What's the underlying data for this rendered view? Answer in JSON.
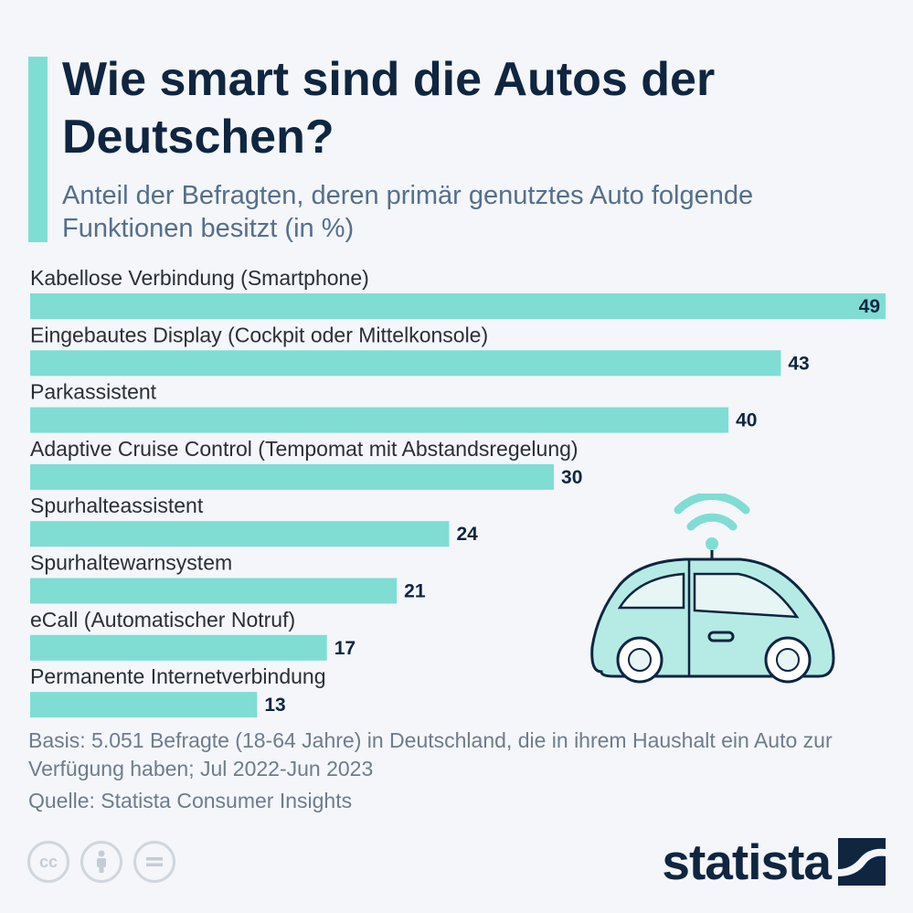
{
  "title": "Wie smart sind die Autos der Deutschen?",
  "subtitle": "Anteil der Befragten, deren primär genutztes Auto folgende Funktionen besitzt (in %)",
  "basis": "Basis: 5.051 Befragte (18-64 Jahre) in Deutschland, die in ihrem Haushalt ein Auto zur Verfügung haben; Jul 2022-Jun 2023",
  "source": "Quelle: Statista Consumer Insights",
  "brand": "statista",
  "license_icons": [
    "cc-icon",
    "by-icon",
    "nd-icon"
  ],
  "colors": {
    "bar": "#7fddd4",
    "title": "#0f2540",
    "background": "#f4f6f9"
  },
  "chart_data": {
    "type": "bar",
    "orientation": "horizontal",
    "categories": [
      "Kabellose Verbindung (Smartphone)",
      "Eingebautes Display (Cockpit oder Mittelkonsole)",
      "Parkassistent",
      "Adaptive Cruise Control (Tempomat mit Abstandsregelung)",
      "Spurhalteassistent",
      "Spurhaltewarnsystem",
      "eCall (Automatischer Notruf)",
      "Permanente Internetverbindung"
    ],
    "values": [
      49,
      43,
      40,
      30,
      24,
      21,
      17,
      13
    ],
    "xlim": [
      0,
      49
    ],
    "grid": false,
    "data_labels": true
  }
}
